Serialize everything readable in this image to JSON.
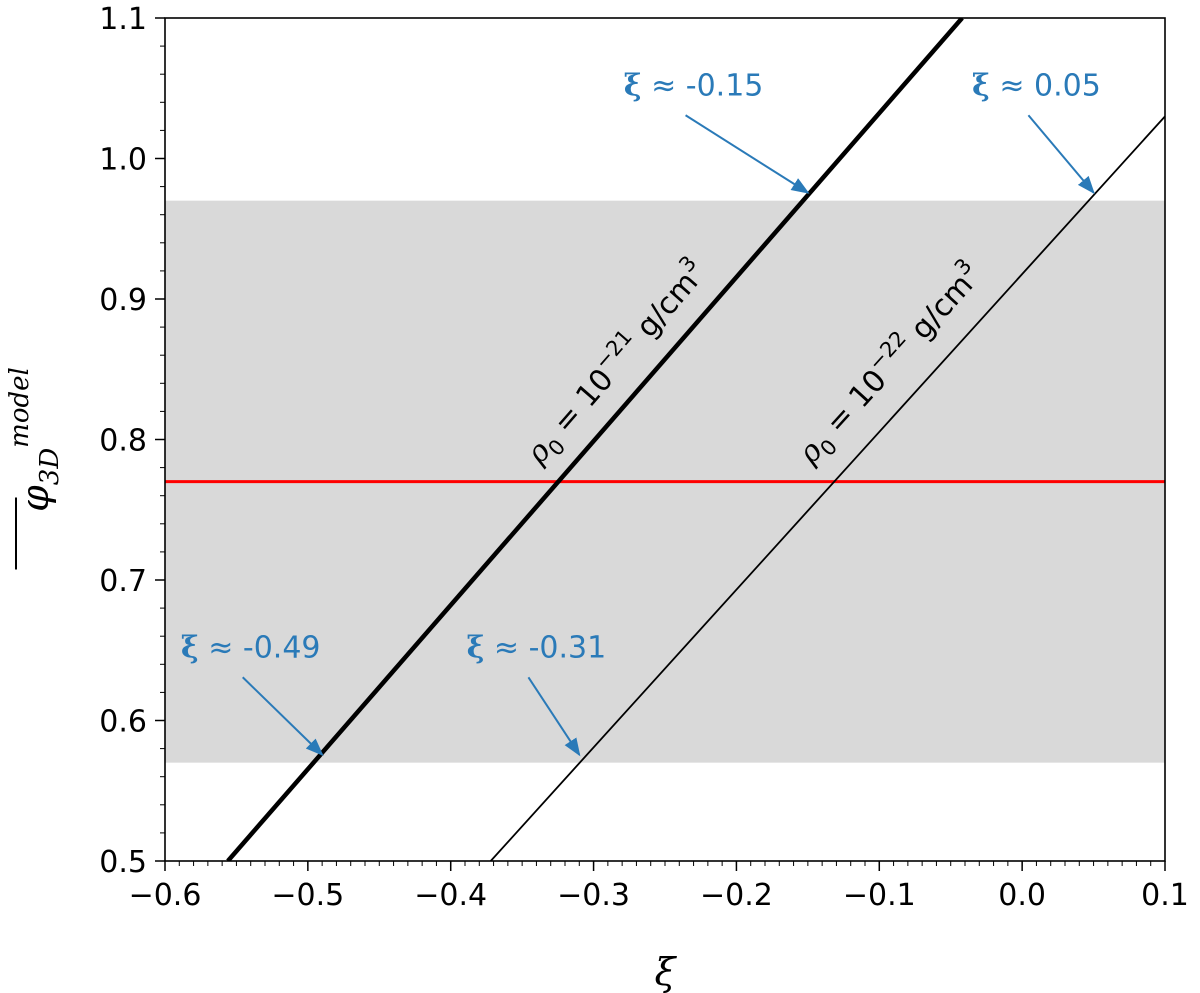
{
  "chart_data": {
    "type": "line",
    "xlabel": "ξ",
    "ylabel": "φ3D model",
    "xlim": [
      -0.6,
      0.1
    ],
    "ylim": [
      0.5,
      1.1
    ],
    "xticks": [
      -0.6,
      -0.5,
      -0.4,
      -0.3,
      -0.2,
      -0.1,
      0.0,
      0.1
    ],
    "xtick_labels": [
      "−0.6",
      "−0.5",
      "−0.4",
      "−0.3",
      "−0.2",
      "−0.1",
      "0.0",
      "0.1"
    ],
    "yticks": [
      0.5,
      0.6,
      0.7,
      0.8,
      0.9,
      1.0,
      1.1
    ],
    "ytick_labels": [
      "0.5",
      "0.6",
      "0.7",
      "0.8",
      "0.9",
      "1.0",
      "1.1"
    ],
    "band": {
      "y_low": 0.57,
      "y_high": 0.97,
      "color": "#d9d9d9"
    },
    "reference_line": {
      "y": 0.77,
      "color": "#ff0000"
    },
    "series": [
      {
        "name": "ρ0 = 10^−21 g/cm^3",
        "label_parts": {
          "rho": "ρ",
          "sub": "0",
          "eq": " = 10",
          "exp": "−21",
          "unit": " g/cm",
          "unit_exp": "3"
        },
        "x": [
          -0.556,
          -0.042
        ],
        "y": [
          0.5,
          1.1
        ],
        "width": "thick",
        "color": "#000000"
      },
      {
        "name": "ρ0 = 10^−22 g/cm^3",
        "label_parts": {
          "rho": "ρ",
          "sub": "0",
          "eq": " = 10",
          "exp": "−22",
          "unit": " g/cm",
          "unit_exp": "3"
        },
        "x": [
          -0.372,
          0.1
        ],
        "y": [
          0.5,
          1.03
        ],
        "width": "thin",
        "color": "#000000"
      }
    ],
    "annotations": [
      {
        "symbol": "ξ",
        "text": " ≈ -0.15",
        "point": [
          -0.15,
          0.97
        ],
        "text_at": [
          -0.23,
          1.045
        ]
      },
      {
        "symbol": "ξ",
        "text": " ≈ 0.05",
        "point": [
          0.05,
          0.97
        ],
        "text_at": [
          0.01,
          1.045
        ]
      },
      {
        "symbol": "ξ",
        "text": " ≈ -0.49",
        "point": [
          -0.49,
          0.57
        ],
        "text_at": [
          -0.54,
          0.645
        ]
      },
      {
        "symbol": "ξ",
        "text": " ≈ -0.31",
        "point": [
          -0.31,
          0.57
        ],
        "text_at": [
          -0.34,
          0.645
        ]
      }
    ],
    "annotation_color": "#2a7ab8",
    "grid": false
  }
}
